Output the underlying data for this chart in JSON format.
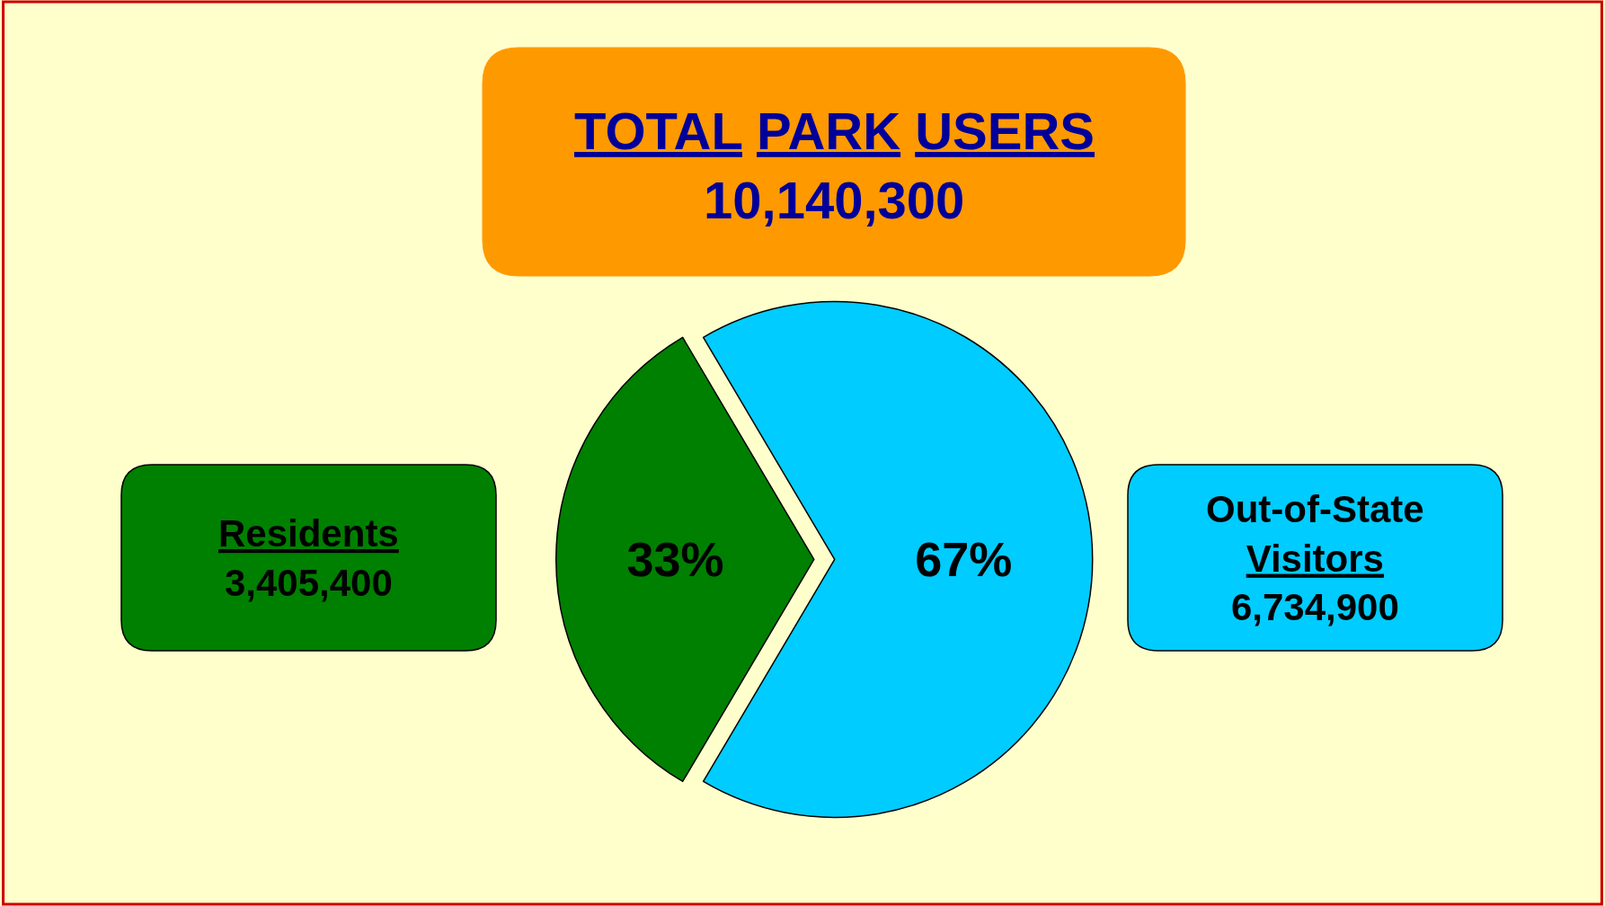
{
  "chart_data": {
    "type": "pie",
    "title": "TOTAL PARK USERS",
    "subtitle": "10,140,300",
    "categories": [
      "Residents",
      "Out-of-State Visitors"
    ],
    "values": [
      33,
      67
    ],
    "value_labels": [
      "33%",
      "67%"
    ],
    "colors": [
      "#008000",
      "#00ccff"
    ],
    "annotations": [
      "3,405,400",
      "6,734,900"
    ],
    "legend": false
  }
}
